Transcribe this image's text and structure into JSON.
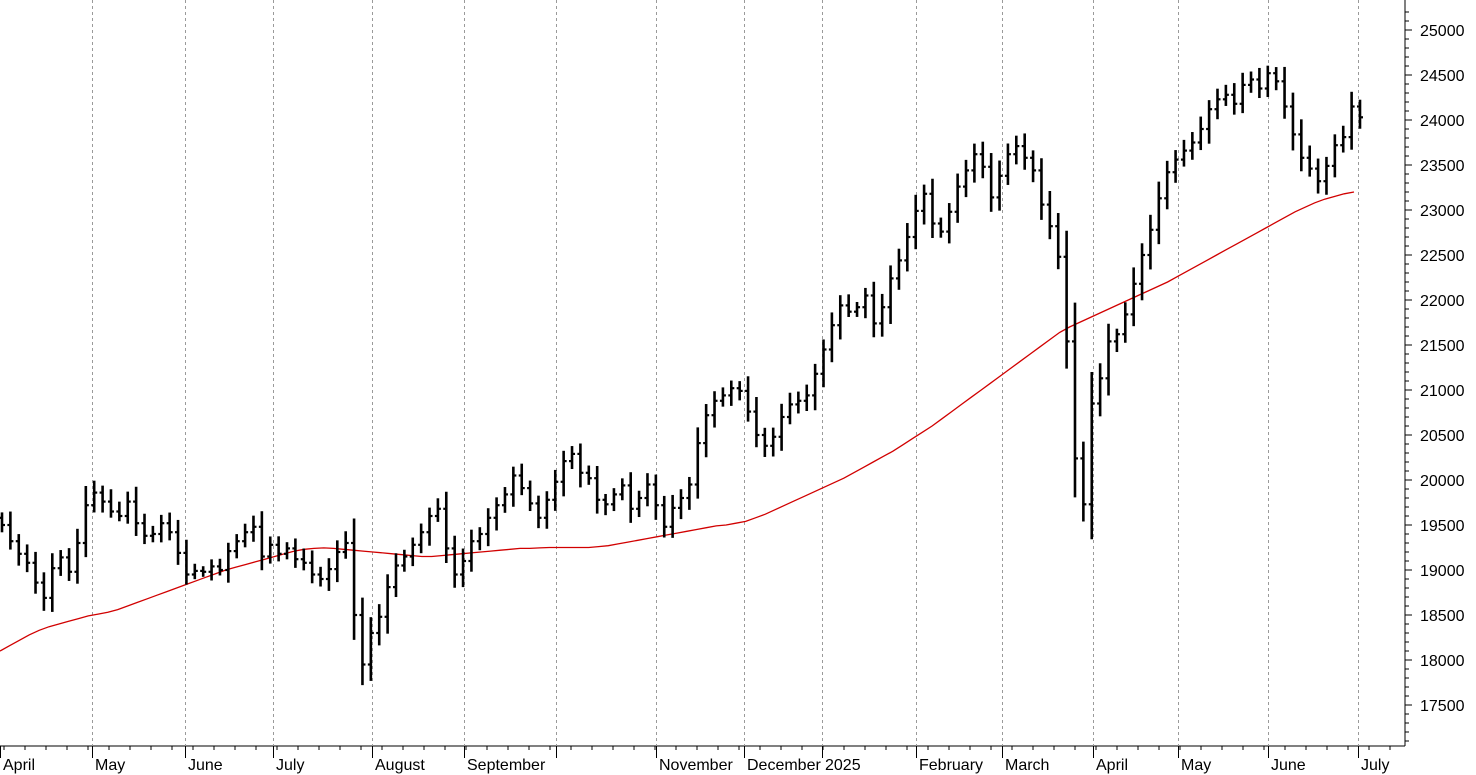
{
  "chart_data": {
    "type": "ohlc",
    "title": "",
    "xlabel": "",
    "ylabel": "",
    "ylim": [
      17000,
      25200
    ],
    "y_ticks": [
      17500,
      18000,
      18500,
      19000,
      19500,
      20000,
      20500,
      21000,
      21500,
      22000,
      22500,
      23000,
      23500,
      24000,
      24500,
      25000
    ],
    "grid": "vertical dashed at month boundaries",
    "x_month_labels": [
      "April",
      "May",
      "June",
      "July",
      "August",
      "September",
      "",
      "November",
      "December",
      "2025",
      "February",
      "March",
      "April",
      "May",
      "June",
      "July"
    ],
    "series": [
      {
        "kind": "price_bars",
        "color": "#000000",
        "closes": [
          19500,
          19320,
          19180,
          19080,
          18860,
          18690,
          19020,
          19140,
          18980,
          19300,
          19720,
          19860,
          19760,
          19650,
          19600,
          19760,
          19520,
          19380,
          19400,
          19520,
          19420,
          19190,
          18950,
          18990,
          18980,
          19040,
          19000,
          19210,
          19320,
          19420,
          19480,
          19150,
          19280,
          19180,
          19240,
          19120,
          19080,
          18950,
          18900,
          19010,
          19200,
          19300,
          18500,
          17950,
          18300,
          18480,
          18810,
          19050,
          19150,
          19280,
          19420,
          19600,
          19680,
          19240,
          18950,
          19100,
          19320,
          19400,
          19580,
          19720,
          19840,
          20050,
          19910,
          19740,
          19580,
          19780,
          19980,
          20210,
          20290,
          20080,
          20020,
          19780,
          19730,
          19840,
          19940,
          19680,
          19800,
          19950,
          19720,
          19480,
          19690,
          19800,
          19950,
          20410,
          20720,
          20880,
          20940,
          21020,
          20990,
          20760,
          20500,
          20380,
          20480,
          20700,
          20840,
          20880,
          20940,
          21180,
          21450,
          21720,
          21940,
          21870,
          21920,
          22050,
          21740,
          21920,
          22240,
          22440,
          22700,
          22990,
          23180,
          22850,
          22760,
          22980,
          23260,
          23440,
          23620,
          23480,
          23140,
          23380,
          23620,
          23710,
          23580,
          23440,
          23060,
          22820,
          22480,
          21540,
          20240,
          19730,
          20850,
          21130,
          21540,
          21620,
          21840,
          22180,
          22500,
          22780,
          23130,
          23420,
          23560,
          23660,
          23750,
          23900,
          24120,
          24230,
          24280,
          24180,
          24390,
          24450,
          24350,
          24520,
          24430,
          24150,
          23840,
          23580,
          23460,
          23320,
          23490,
          23720,
          23810,
          24150,
          24030
        ],
        "ma": [
          18100,
          18160,
          18220,
          18280,
          18330,
          18370,
          18400,
          18430,
          18460,
          18490,
          18510,
          18530,
          18560,
          18600,
          18640,
          18680,
          18720,
          18760,
          18800,
          18840,
          18880,
          18920,
          18960,
          19000,
          19030,
          19060,
          19090,
          19120,
          19150,
          19180,
          19210,
          19230,
          19240,
          19245,
          19240,
          19230,
          19220,
          19210,
          19200,
          19190,
          19180,
          19170,
          19160,
          19150,
          19150,
          19160,
          19170,
          19180,
          19190,
          19200,
          19210,
          19220,
          19230,
          19240,
          19240,
          19245,
          19250,
          19250,
          19250,
          19250,
          19250,
          19260,
          19270,
          19290,
          19310,
          19330,
          19350,
          19370,
          19390,
          19410,
          19430,
          19450,
          19470,
          19490,
          19500,
          19520,
          19540,
          19580,
          19620,
          19670,
          19720,
          19770,
          19820,
          19870,
          19920,
          19970,
          20020,
          20080,
          20140,
          20200,
          20260,
          20320,
          20390,
          20460,
          20530,
          20600,
          20680,
          20760,
          20840,
          20920,
          21000,
          21080,
          21160,
          21240,
          21320,
          21400,
          21480,
          21560,
          21640,
          21700,
          21750,
          21800,
          21850,
          21900,
          21950,
          22000,
          22050,
          22100,
          22150,
          22200,
          22260,
          22320,
          22380,
          22440,
          22500,
          22560,
          22620,
          22680,
          22740,
          22800,
          22860,
          22920,
          22980,
          23030,
          23080,
          23120,
          23150,
          23180,
          23200
        ]
      }
    ]
  }
}
